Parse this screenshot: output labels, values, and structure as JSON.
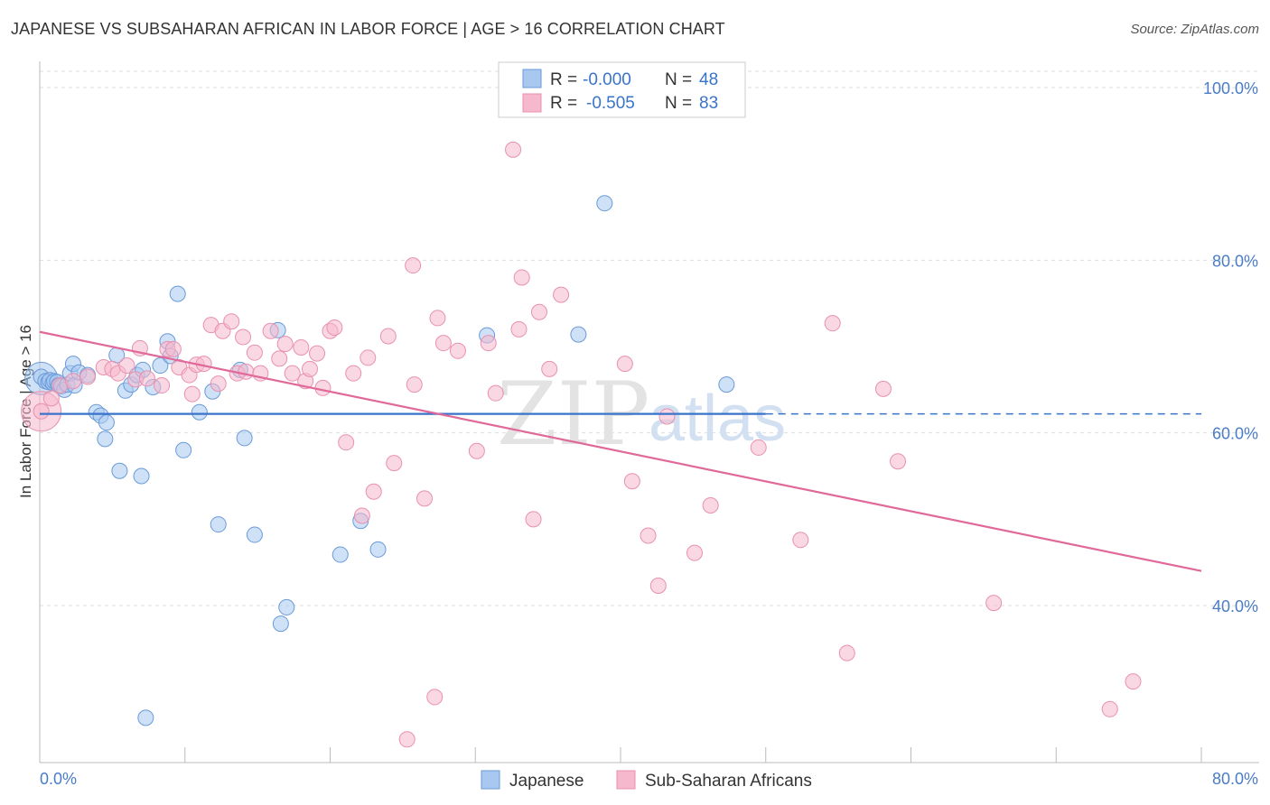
{
  "title": "JAPANESE VS SUBSAHARAN AFRICAN IN LABOR FORCE | AGE > 16 CORRELATION CHART",
  "source": "Source: ZipAtlas.com",
  "watermark": {
    "zip": "ZIP",
    "atlas": "atlas"
  },
  "colors": {
    "blue_fill": "#a8c8f0",
    "blue_stroke": "#6a9ad8",
    "blue_line": "#3a74c9",
    "pink_fill": "#f6b8cc",
    "pink_stroke": "#e891ae",
    "pink_line": "#e0699a",
    "tick_text": "#4a7cc7",
    "grid": "#dddddd"
  },
  "legend": {
    "rows": [
      {
        "r_label": "R =",
        "r_value": "-0.000",
        "n_label": "N =",
        "n_value": "48"
      },
      {
        "r_label": "R =",
        "r_value": "-0.505",
        "n_label": "N =",
        "n_value": "83"
      }
    ]
  },
  "bottom_legend": [
    "Japanese",
    "Sub-Saharan Africans"
  ],
  "chart_data": {
    "type": "scatter",
    "xlabel": "",
    "ylabel": "In Labor Force | Age > 16",
    "xlim": [
      0,
      80
    ],
    "ylim": [
      20,
      104
    ],
    "x_tick_labels": [
      {
        "value": 0,
        "label": "0.0%"
      },
      {
        "value": 80,
        "label": "80.0%"
      }
    ],
    "y_tick_labels": [
      {
        "value": 100,
        "label": "100.0%"
      },
      {
        "value": 80,
        "label": "80.0%"
      },
      {
        "value": 60,
        "label": "60.0%"
      },
      {
        "value": 40,
        "label": "40.0%"
      }
    ],
    "grid": true,
    "series": [
      {
        "name": "Japanese",
        "trend": {
          "x0": 0,
          "y0": 62.2,
          "x1": 50,
          "y1": 62.2,
          "dashed_to": 80
        },
        "points": [
          [
            0.1,
            66.5
          ],
          [
            0.4,
            66.0
          ],
          [
            0.6,
            65.9
          ],
          [
            0.7,
            66.1
          ],
          [
            0.9,
            65.8
          ],
          [
            1.0,
            66.0
          ],
          [
            1.2,
            65.9
          ],
          [
            1.3,
            65.5
          ],
          [
            1.5,
            65.4
          ],
          [
            1.7,
            65.0
          ],
          [
            1.9,
            65.6
          ],
          [
            2.1,
            66.9
          ],
          [
            2.3,
            68.0
          ],
          [
            2.4,
            65.5
          ],
          [
            2.7,
            67.0
          ],
          [
            3.3,
            66.7
          ],
          [
            3.9,
            62.4
          ],
          [
            4.2,
            62.0
          ],
          [
            4.6,
            61.2
          ],
          [
            4.5,
            59.3
          ],
          [
            5.3,
            69.0
          ],
          [
            5.5,
            55.6
          ],
          [
            5.9,
            64.9
          ],
          [
            6.3,
            65.6
          ],
          [
            6.7,
            66.7
          ],
          [
            7.0,
            55.0
          ],
          [
            7.1,
            67.3
          ],
          [
            7.3,
            27.0
          ],
          [
            7.8,
            65.3
          ],
          [
            8.3,
            67.8
          ],
          [
            8.8,
            70.6
          ],
          [
            9.0,
            68.9
          ],
          [
            9.5,
            76.1
          ],
          [
            9.9,
            58.0
          ],
          [
            11.0,
            62.4
          ],
          [
            11.9,
            64.8
          ],
          [
            12.3,
            49.4
          ],
          [
            13.8,
            67.3
          ],
          [
            14.1,
            59.4
          ],
          [
            14.8,
            48.2
          ],
          [
            16.4,
            71.9
          ],
          [
            17.0,
            39.8
          ],
          [
            16.6,
            37.9
          ],
          [
            20.7,
            45.9
          ],
          [
            22.1,
            49.8
          ],
          [
            23.3,
            46.5
          ],
          [
            30.8,
            71.3
          ],
          [
            37.1,
            71.4
          ],
          [
            38.9,
            86.6
          ],
          [
            47.3,
            65.6
          ]
        ]
      },
      {
        "name": "Sub-Saharan Africans",
        "trend": {
          "x0": 0,
          "y0": 71.7,
          "x1": 80,
          "y1": 44.0
        },
        "points": [
          [
            0.1,
            62.5
          ],
          [
            0.8,
            64.0
          ],
          [
            1.4,
            65.5
          ],
          [
            2.3,
            66.0
          ],
          [
            3.3,
            66.5
          ],
          [
            4.4,
            67.6
          ],
          [
            5.0,
            67.4
          ],
          [
            5.4,
            66.9
          ],
          [
            6.0,
            67.8
          ],
          [
            6.6,
            66.2
          ],
          [
            6.9,
            69.8
          ],
          [
            7.4,
            66.3
          ],
          [
            8.4,
            65.5
          ],
          [
            8.8,
            69.7
          ],
          [
            9.2,
            69.7
          ],
          [
            9.6,
            67.6
          ],
          [
            10.3,
            66.7
          ],
          [
            10.5,
            64.5
          ],
          [
            10.8,
            67.9
          ],
          [
            11.3,
            68.0
          ],
          [
            11.8,
            72.5
          ],
          [
            12.3,
            65.7
          ],
          [
            12.6,
            71.8
          ],
          [
            13.2,
            72.9
          ],
          [
            13.6,
            66.9
          ],
          [
            14.0,
            71.1
          ],
          [
            14.2,
            67.1
          ],
          [
            14.8,
            69.3
          ],
          [
            15.2,
            66.9
          ],
          [
            15.9,
            71.8
          ],
          [
            16.5,
            68.6
          ],
          [
            16.9,
            70.3
          ],
          [
            17.4,
            66.9
          ],
          [
            18.0,
            69.9
          ],
          [
            18.3,
            66.0
          ],
          [
            18.6,
            67.4
          ],
          [
            19.1,
            69.2
          ],
          [
            19.5,
            65.2
          ],
          [
            20.0,
            71.8
          ],
          [
            20.3,
            72.2
          ],
          [
            21.1,
            58.9
          ],
          [
            21.6,
            66.9
          ],
          [
            22.2,
            50.4
          ],
          [
            22.6,
            68.7
          ],
          [
            23.0,
            53.2
          ],
          [
            24.0,
            71.2
          ],
          [
            24.4,
            56.5
          ],
          [
            25.3,
            24.5
          ],
          [
            25.7,
            79.4
          ],
          [
            25.8,
            65.6
          ],
          [
            26.5,
            52.4
          ],
          [
            27.2,
            29.4
          ],
          [
            27.4,
            73.3
          ],
          [
            27.8,
            70.4
          ],
          [
            28.8,
            69.5
          ],
          [
            30.1,
            57.9
          ],
          [
            30.9,
            70.4
          ],
          [
            31.4,
            64.6
          ],
          [
            32.6,
            92.8
          ],
          [
            33.0,
            72.0
          ],
          [
            33.2,
            78.0
          ],
          [
            34.0,
            50.0
          ],
          [
            34.4,
            74.0
          ],
          [
            35.1,
            67.4
          ],
          [
            35.9,
            76.0
          ],
          [
            40.3,
            68.0
          ],
          [
            40.8,
            54.4
          ],
          [
            41.9,
            48.1
          ],
          [
            42.6,
            42.3
          ],
          [
            43.2,
            61.9
          ],
          [
            45.1,
            46.1
          ],
          [
            46.2,
            51.6
          ],
          [
            49.5,
            58.3
          ],
          [
            52.4,
            47.6
          ],
          [
            54.6,
            72.7
          ],
          [
            55.6,
            34.5
          ],
          [
            58.1,
            65.1
          ],
          [
            59.1,
            56.7
          ],
          [
            65.7,
            40.3
          ],
          [
            73.7,
            28.0
          ],
          [
            75.3,
            31.2
          ]
        ]
      }
    ]
  }
}
